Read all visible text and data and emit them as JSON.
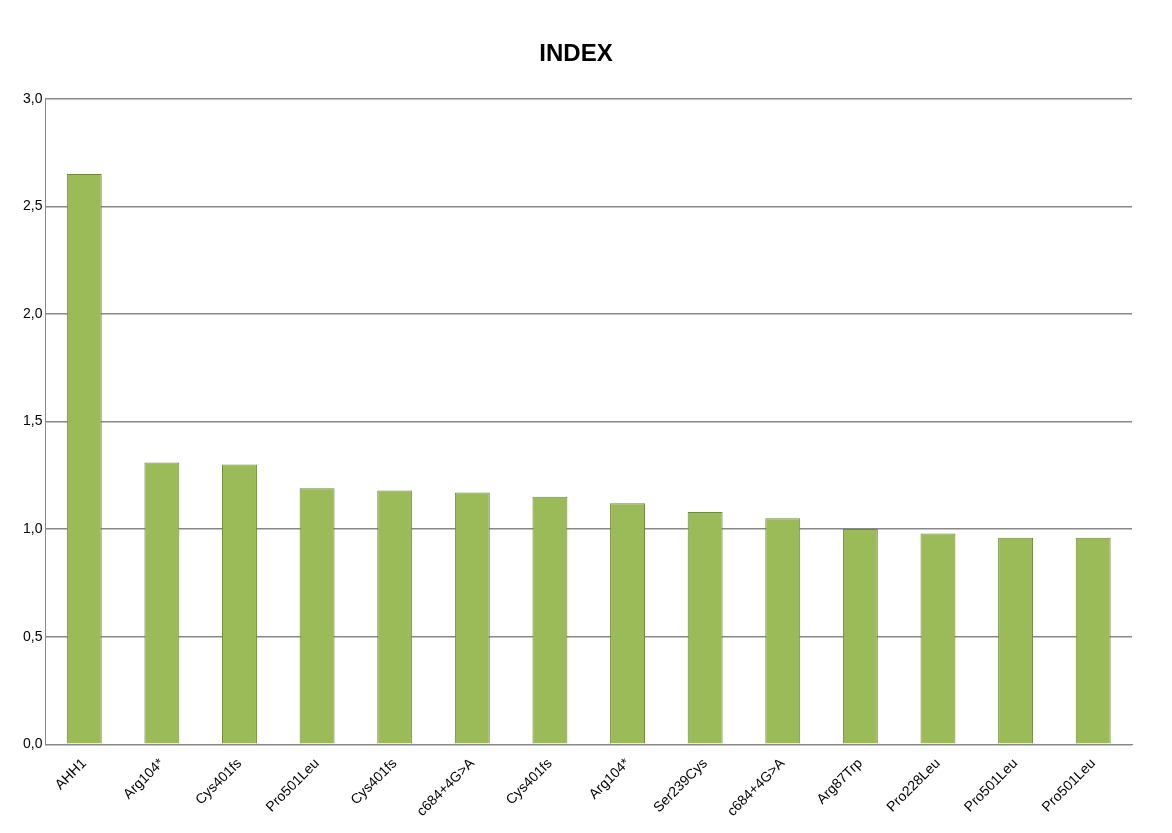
{
  "chart_data": {
    "type": "bar",
    "title": "INDEX",
    "categories": [
      "AHH1",
      "Arg104*",
      "Cys401fs",
      "Pro501Leu",
      "Cys401fs",
      "c684+4G>A",
      "Cys401fs",
      "Arg104*",
      "Ser239Cys",
      "c684+4G>A",
      "Arg87Trp",
      "Pro228Leu",
      "Pro501Leu",
      "Pro501Leu"
    ],
    "values": [
      2.65,
      1.31,
      1.3,
      1.19,
      1.18,
      1.17,
      1.15,
      1.12,
      1.08,
      1.05,
      1.0,
      0.98,
      0.96,
      0.96
    ],
    "color": "#9bbb59",
    "ylim": [
      0,
      3
    ],
    "yticks": [
      {
        "value": 0,
        "label": "0,0"
      },
      {
        "value": 0.5,
        "label": "0,5"
      },
      {
        "value": 1,
        "label": "1,0"
      },
      {
        "value": 1.5,
        "label": "1,5"
      },
      {
        "value": 2,
        "label": "2,0"
      },
      {
        "value": 2.5,
        "label": "2,5"
      },
      {
        "value": 3,
        "label": "3,0"
      }
    ],
    "grid": "y",
    "legend": false
  }
}
